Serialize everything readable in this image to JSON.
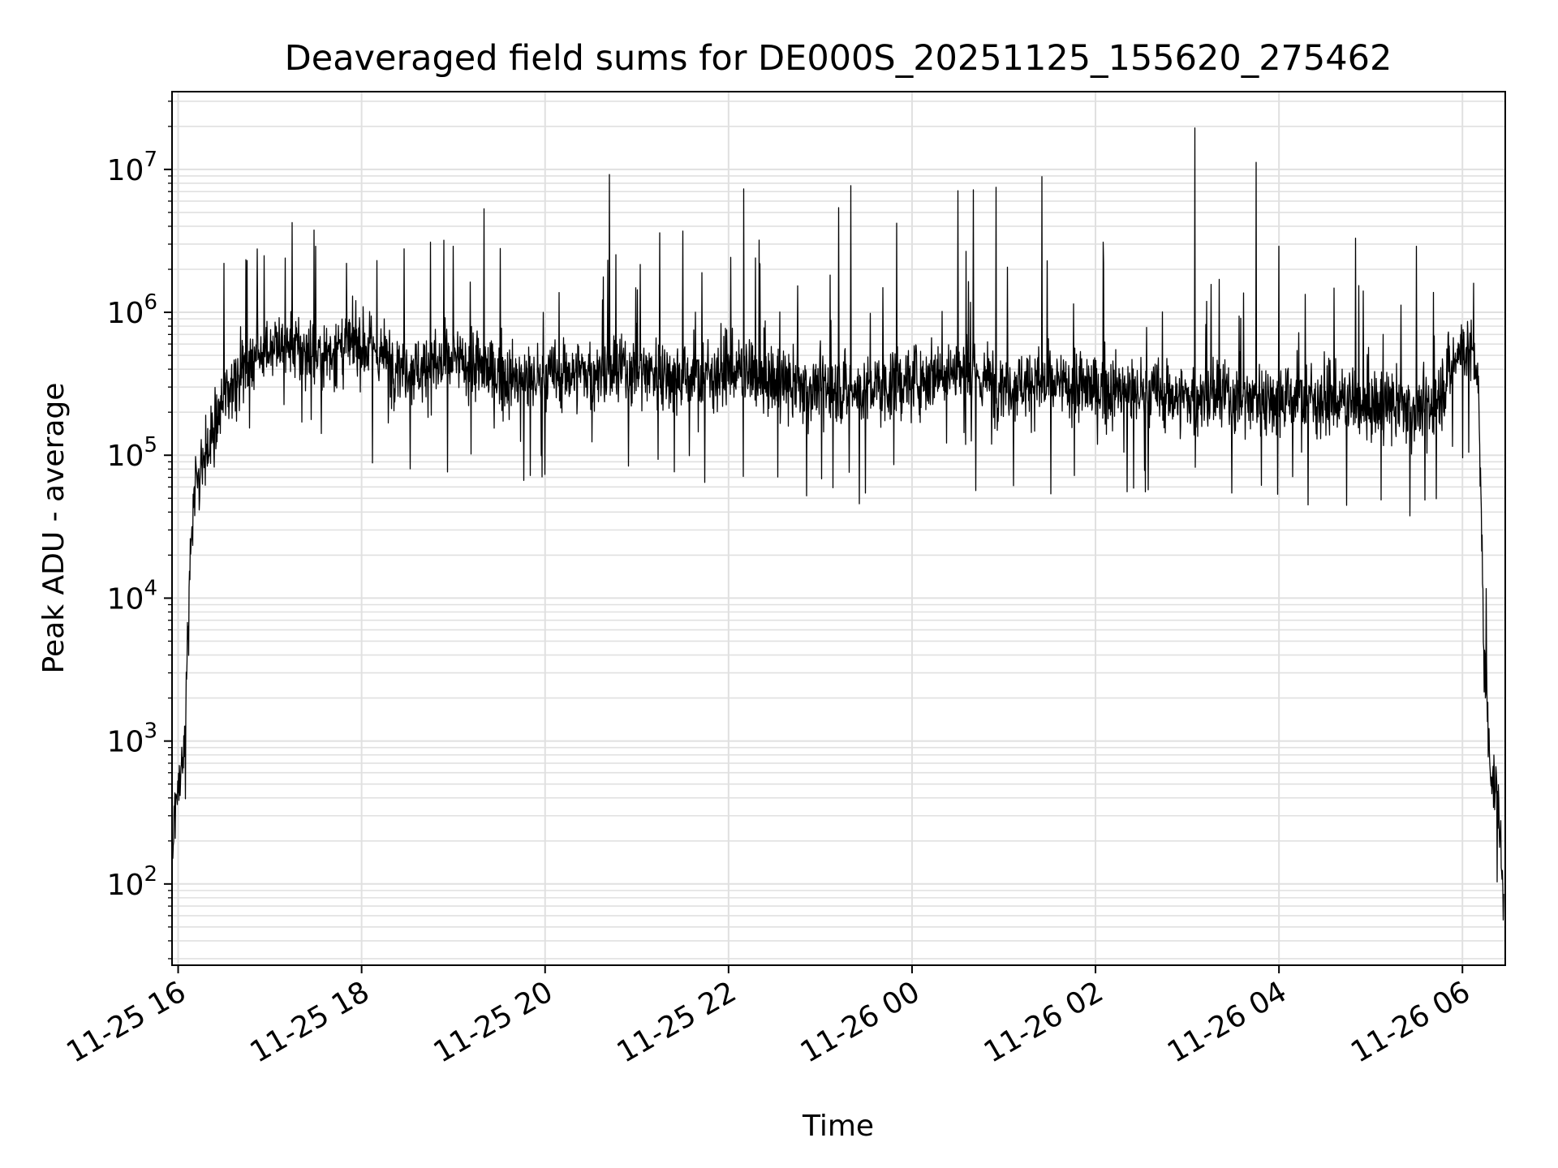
{
  "chart_data": {
    "type": "line",
    "title": "Deaveraged field sums for DE000S_20251125_155620_275462",
    "xlabel": "Time",
    "ylabel": "Peak ADU - average",
    "yscale": "log",
    "xlim": [
      "2025-11-25 15:56",
      "2025-11-26 06:28"
    ],
    "ylim": [
      27,
      35000000
    ],
    "grid": true,
    "line_color": "#000000",
    "x_ticks": [
      "11-25 16",
      "11-25 18",
      "11-25 20",
      "11-25 22",
      "11-26 00",
      "11-26 02",
      "11-26 04",
      "11-26 06"
    ],
    "y_ticks": [
      {
        "base": "10",
        "exp": "2",
        "value": 100
      },
      {
        "base": "10",
        "exp": "3",
        "value": 1000
      },
      {
        "base": "10",
        "exp": "4",
        "value": 10000
      },
      {
        "base": "10",
        "exp": "5",
        "value": 100000
      },
      {
        "base": "10",
        "exp": "6",
        "value": 1000000
      },
      {
        "base": "10",
        "exp": "7",
        "value": 10000000
      }
    ],
    "series": [
      {
        "x": [
          "2025-11-25 15:56",
          "2025-11-25 15:58",
          "2025-11-25 16:00",
          "2025-11-25 16:03",
          "2025-11-25 16:05",
          "2025-11-25 16:07",
          "2025-11-25 16:09",
          "2025-11-25 16:11",
          "2025-11-25 16:14",
          "2025-11-25 16:18",
          "2025-11-25 16:24",
          "2025-11-25 16:30",
          "2025-11-25 16:40",
          "2025-11-25 16:50",
          "2025-11-25 17:00",
          "2025-11-25 17:15",
          "2025-11-25 17:30",
          "2025-11-25 17:45",
          "2025-11-25 18:00",
          "2025-11-25 18:20",
          "2025-11-25 18:40",
          "2025-11-25 19:00",
          "2025-11-25 19:20",
          "2025-11-25 19:40",
          "2025-11-25 20:00",
          "2025-11-25 20:20",
          "2025-11-25 20:40",
          "2025-11-25 21:00",
          "2025-11-25 21:20",
          "2025-11-25 21:40",
          "2025-11-25 22:00",
          "2025-11-25 22:20",
          "2025-11-25 22:40",
          "2025-11-25 23:00",
          "2025-11-25 23:20",
          "2025-11-25 23:40",
          "2025-11-26 00:00",
          "2025-11-26 00:20",
          "2025-11-26 00:40",
          "2025-11-26 01:00",
          "2025-11-26 01:20",
          "2025-11-26 01:40",
          "2025-11-26 02:00",
          "2025-11-26 02:20",
          "2025-11-26 02:40",
          "2025-11-26 03:00",
          "2025-11-26 03:20",
          "2025-11-26 03:40",
          "2025-11-26 04:00",
          "2025-11-26 04:20",
          "2025-11-26 04:40",
          "2025-11-26 05:00",
          "2025-11-26 05:20",
          "2025-11-26 05:40",
          "2025-11-26 06:00",
          "2025-11-26 06:05",
          "2025-11-26 06:10",
          "2025-11-26 06:14",
          "2025-11-26 06:18",
          "2025-11-26 06:21",
          "2025-11-26 06:24",
          "2025-11-26 06:27"
        ],
        "y": [
          120,
          350,
          500,
          700,
          2500,
          8000,
          40000,
          60000,
          80000,
          100000,
          150000,
          250000,
          400000,
          500000,
          600000,
          550000,
          500000,
          550000,
          600000,
          450000,
          400000,
          450000,
          400000,
          330000,
          350000,
          380000,
          380000,
          400000,
          380000,
          350000,
          400000,
          350000,
          300000,
          300000,
          280000,
          300000,
          330000,
          400000,
          350000,
          320000,
          320000,
          300000,
          290000,
          280000,
          270000,
          250000,
          260000,
          250000,
          260000,
          250000,
          240000,
          220000,
          220000,
          210000,
          600000,
          550000,
          400000,
          5000,
          700,
          500,
          300,
          60
        ]
      }
    ],
    "spikes": [
      {
        "x": "2025-11-25 16:30",
        "y": 2200000
      },
      {
        "x": "2025-11-25 16:45",
        "y": 2300000
      },
      {
        "x": "2025-11-25 17:10",
        "y": 2400000
      },
      {
        "x": "2025-11-25 17:30",
        "y": 2900000
      },
      {
        "x": "2025-11-25 17:50",
        "y": 2200000
      },
      {
        "x": "2025-11-25 18:10",
        "y": 2300000
      },
      {
        "x": "2025-11-25 18:45",
        "y": 3100000
      },
      {
        "x": "2025-11-25 19:00",
        "y": 2900000
      },
      {
        "x": "2025-11-25 19:20",
        "y": 5300000
      },
      {
        "x": "2025-11-25 20:42",
        "y": 9200000
      },
      {
        "x": "2025-11-25 21:15",
        "y": 3600000
      },
      {
        "x": "2025-11-25 21:30",
        "y": 3700000
      },
      {
        "x": "2025-11-25 22:10",
        "y": 7300000
      },
      {
        "x": "2025-11-25 22:20",
        "y": 3200000
      },
      {
        "x": "2025-11-25 23:12",
        "y": 5400000
      },
      {
        "x": "2025-11-25 23:20",
        "y": 7700000
      },
      {
        "x": "2025-11-25 23:50",
        "y": 4200000
      },
      {
        "x": "2025-11-26 00:30",
        "y": 7100000
      },
      {
        "x": "2025-11-26 00:40",
        "y": 7200000
      },
      {
        "x": "2025-11-26 00:55",
        "y": 7500000
      },
      {
        "x": "2025-11-26 01:25",
        "y": 8900000
      },
      {
        "x": "2025-11-26 02:05",
        "y": 3100000
      },
      {
        "x": "2025-11-26 03:05",
        "y": 19500000
      },
      {
        "x": "2025-11-26 03:45",
        "y": 11200000
      },
      {
        "x": "2025-11-26 04:00",
        "y": 2900000
      },
      {
        "x": "2025-11-26 04:50",
        "y": 3300000
      },
      {
        "x": "2025-11-26 05:30",
        "y": 2900000
      }
    ]
  }
}
